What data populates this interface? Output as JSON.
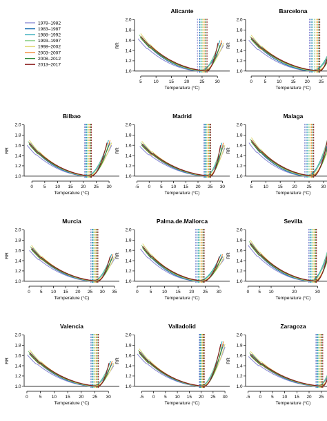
{
  "legend": [
    {
      "label": "1978–1982",
      "color": "#8e8ed6"
    },
    {
      "label": "1983–1987",
      "color": "#1a6fb0"
    },
    {
      "label": "1988–1992",
      "color": "#2ba7b8"
    },
    {
      "label": "1993–1997",
      "color": "#8fd18b"
    },
    {
      "label": "1998–2002",
      "color": "#e3d97a"
    },
    {
      "label": "2003–2007",
      "color": "#f28a3a"
    },
    {
      "label": "2008–2012",
      "color": "#2f8a3a"
    },
    {
      "label": "2013–2017",
      "color": "#8b1a1a"
    }
  ],
  "chart_data": [
    {
      "type": "line",
      "title": "Alicante",
      "xlabel": "Temperature (°C)",
      "ylabel": "RR",
      "xlim": [
        3,
        34
      ],
      "ylim": [
        0.97,
        2.02
      ],
      "xticks": [
        5,
        10,
        15,
        20,
        25,
        30
      ],
      "yticks": [
        1.0,
        1.2,
        1.4,
        1.6,
        1.8,
        2.0
      ],
      "reference_y": 1.0,
      "xmin": 5,
      "xmax": 32,
      "mmt": [
        23.5,
        24.2,
        24.6,
        25.0,
        25.3,
        25.7,
        26.1,
        26.6
      ],
      "left_rr": 1.68,
      "right_rr": 1.55
    },
    {
      "type": "line",
      "title": "Barcelona",
      "xlabel": "Temperature (°C)",
      "ylabel": "RR",
      "xlim": [
        -2,
        32
      ],
      "ylim": [
        0.97,
        2.02
      ],
      "xticks": [
        0,
        5,
        10,
        15,
        20,
        25,
        30
      ],
      "yticks": [
        1.0,
        1.2,
        1.4,
        1.6,
        1.8,
        2.0
      ],
      "reference_y": 1.0,
      "xmin": 0,
      "xmax": 30,
      "mmt": [
        20.8,
        21.4,
        22.0,
        22.6,
        23.2,
        23.7,
        24.1,
        24.5
      ],
      "left_rr": 1.65,
      "right_rr": 1.45
    },
    {
      "type": "line",
      "title": "Bilbao",
      "xlabel": "Temperature (°C)",
      "ylabel": "RR",
      "xlim": [
        -3,
        34
      ],
      "ylim": [
        0.97,
        2.02
      ],
      "xticks": [
        0,
        5,
        10,
        15,
        20,
        25,
        30
      ],
      "yticks": [
        1.0,
        1.2,
        1.4,
        1.6,
        1.8,
        2.0
      ],
      "reference_y": 1.0,
      "xmin": -1,
      "xmax": 31,
      "mmt": [
        20.5,
        20.9,
        21.3,
        21.7,
        22.1,
        22.5,
        22.8,
        23.1
      ],
      "left_rr": 1.65,
      "right_rr": 1.65
    },
    {
      "type": "line",
      "title": "Madrid",
      "xlabel": "Temperature (°C)",
      "ylabel": "RR",
      "xlim": [
        -6,
        33
      ],
      "ylim": [
        0.97,
        2.02
      ],
      "xticks": [
        -5,
        0,
        5,
        10,
        15,
        20,
        25,
        30
      ],
      "yticks": [
        1.0,
        1.2,
        1.4,
        1.6,
        1.8,
        2.0
      ],
      "reference_y": 1.0,
      "xmin": -3,
      "xmax": 31,
      "mmt": [
        22.4,
        22.8,
        23.2,
        23.6,
        24.0,
        24.4,
        24.8,
        25.2
      ],
      "left_rr": 1.63,
      "right_rr": 1.6
    },
    {
      "type": "line",
      "title": "Malaga",
      "xlabel": "Temperature (°C)",
      "ylabel": "RR",
      "xlim": [
        3,
        36
      ],
      "ylim": [
        0.97,
        2.02
      ],
      "xticks": [
        5,
        10,
        15,
        20,
        25,
        30,
        35
      ],
      "yticks": [
        1.0,
        1.2,
        1.4,
        1.6,
        1.8,
        2.0
      ],
      "reference_y": 1.0,
      "xmin": 5,
      "xmax": 34,
      "mmt": [
        23.5,
        24.0,
        24.5,
        25.0,
        25.4,
        25.8,
        26.2,
        26.6
      ],
      "left_rr": 1.7,
      "right_rr": 1.95
    },
    {
      "type": "line",
      "title": "Murcia",
      "xlabel": "Temperature (°C)",
      "ylabel": "RR",
      "xlim": [
        -2,
        37
      ],
      "ylim": [
        0.97,
        2.02
      ],
      "xticks": [
        0,
        5,
        10,
        15,
        20,
        25,
        30,
        35
      ],
      "yticks": [
        1.0,
        1.2,
        1.4,
        1.6,
        1.8,
        2.0
      ],
      "reference_y": 1.0,
      "xmin": 1,
      "xmax": 35,
      "mmt": [
        25.3,
        25.8,
        26.2,
        26.6,
        27.0,
        27.4,
        27.8,
        28.2
      ],
      "left_rr": 1.65,
      "right_rr": 1.48
    },
    {
      "type": "line",
      "title": "Palma.de.Mallorca",
      "xlabel": "Temperature (°C)",
      "ylabel": "RR",
      "xlim": [
        -1,
        34
      ],
      "ylim": [
        0.97,
        2.02
      ],
      "xticks": [
        0,
        5,
        10,
        15,
        20,
        25,
        30
      ],
      "yticks": [
        1.0,
        1.2,
        1.4,
        1.6,
        1.8,
        2.0
      ],
      "reference_y": 1.0,
      "xmin": 2,
      "xmax": 32,
      "mmt": [
        21.5,
        22.0,
        22.5,
        23.0,
        23.4,
        23.8,
        24.2,
        24.6
      ],
      "left_rr": 1.68,
      "right_rr": 1.48
    },
    {
      "type": "line",
      "title": "Sevilla",
      "xlabel": "Temperature (°C)",
      "ylabel": "RR",
      "xlim": [
        -1,
        40
      ],
      "ylim": [
        0.97,
        2.02
      ],
      "xticks": [
        0,
        5,
        10,
        20,
        30
      ],
      "yticks": [
        1.0,
        1.2,
        1.4,
        1.6,
        1.8,
        2.0
      ],
      "reference_y": 1.0,
      "xmin": 1,
      "xmax": 38,
      "mmt": [
        26.2,
        26.7,
        27.2,
        27.7,
        28.2,
        28.7,
        29.1,
        29.5
      ],
      "left_rr": 1.75,
      "right_rr": 1.98
    },
    {
      "type": "line",
      "title": "Valencia",
      "xlabel": "Temperature (°C)",
      "ylabel": "RR",
      "xlim": [
        -1,
        34
      ],
      "ylim": [
        0.97,
        2.02
      ],
      "xticks": [
        0,
        5,
        10,
        15,
        20,
        25,
        30
      ],
      "yticks": [
        1.0,
        1.2,
        1.4,
        1.6,
        1.8,
        2.0
      ],
      "reference_y": 1.0,
      "xmin": 1,
      "xmax": 32,
      "mmt": [
        23.5,
        23.9,
        24.3,
        24.7,
        25.1,
        25.5,
        25.9,
        26.3
      ],
      "left_rr": 1.66,
      "right_rr": 1.45
    },
    {
      "type": "line",
      "title": "Valladolid",
      "xlabel": "Temperature (°C)",
      "ylabel": "RR",
      "xlim": [
        -8,
        32
      ],
      "ylim": [
        0.97,
        2.02
      ],
      "xticks": [
        -5,
        0,
        5,
        10,
        15,
        20,
        25,
        30
      ],
      "yticks": [
        1.0,
        1.2,
        1.4,
        1.6,
        1.8,
        2.0
      ],
      "reference_y": 1.0,
      "xmin": -6,
      "xmax": 30,
      "mmt": [
        19.2,
        19.5,
        19.8,
        20.1,
        20.4,
        20.7,
        21.0,
        21.3
      ],
      "left_rr": 1.68,
      "right_rr": 1.82
    },
    {
      "type": "line",
      "title": "Zaragoza",
      "xlabel": "Temperature (°C)",
      "ylabel": "RR",
      "xlim": [
        -6,
        33
      ],
      "ylim": [
        0.97,
        2.02
      ],
      "xticks": [
        -5,
        0,
        5,
        10,
        15,
        20,
        25,
        30
      ],
      "yticks": [
        1.0,
        1.2,
        1.4,
        1.6,
        1.8,
        2.0
      ],
      "reference_y": 1.0,
      "xmin": -4,
      "xmax": 31,
      "mmt": [
        22.8,
        23.2,
        23.6,
        24.0,
        24.4,
        24.8,
        25.2,
        25.6
      ],
      "left_rr": 1.63,
      "right_rr": 1.48
    }
  ]
}
